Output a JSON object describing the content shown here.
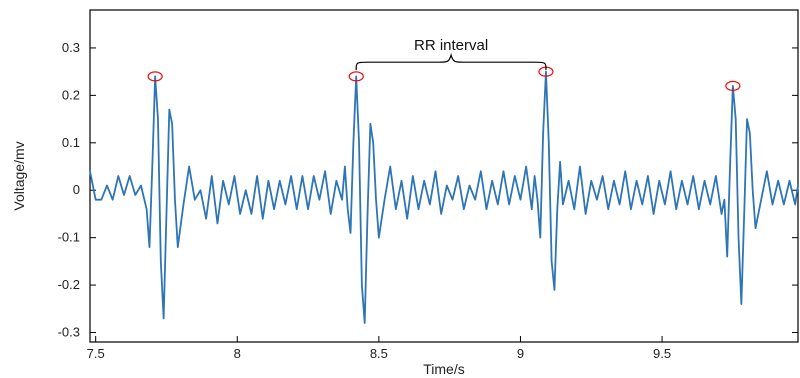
{
  "chart_data": {
    "type": "line",
    "xlabel": "Time/s",
    "ylabel": "Voltage/mv",
    "xlim": [
      7.48,
      9.98
    ],
    "ylim": [
      -0.32,
      0.38
    ],
    "xticks": [
      7.5,
      8,
      8.5,
      9,
      9.5
    ],
    "yticks": [
      0.3,
      0.2,
      0.1,
      0,
      -0.1,
      -0.2,
      -0.3
    ],
    "xtick_labels": [
      "7.5",
      "8",
      "8.5",
      "9",
      "9.5"
    ],
    "ytick_labels": [
      "0.3",
      "0.2",
      "0.1",
      "0",
      "-0.1",
      "-0.2",
      "-0.3"
    ],
    "annotation": {
      "label": "RR interval",
      "from_x": 8.42,
      "to_x": 9.09,
      "y": 0.27
    },
    "series": [
      {
        "color": "#2e75b6",
        "points": [
          [
            7.48,
            0.04
          ],
          [
            7.5,
            -0.02
          ],
          [
            7.52,
            -0.02
          ],
          [
            7.54,
            0.01
          ],
          [
            7.56,
            -0.02
          ],
          [
            7.58,
            0.03
          ],
          [
            7.6,
            -0.01
          ],
          [
            7.62,
            0.03
          ],
          [
            7.64,
            -0.01
          ],
          [
            7.66,
            0.01
          ],
          [
            7.68,
            -0.04
          ],
          [
            7.69,
            -0.12
          ],
          [
            7.7,
            0.05
          ],
          [
            7.71,
            0.24
          ],
          [
            7.72,
            0.15
          ],
          [
            7.73,
            -0.15
          ],
          [
            7.74,
            -0.27
          ],
          [
            7.75,
            -0.05
          ],
          [
            7.76,
            0.17
          ],
          [
            7.77,
            0.14
          ],
          [
            7.78,
            -0.02
          ],
          [
            7.79,
            -0.12
          ],
          [
            7.81,
            -0.03
          ],
          [
            7.83,
            0.05
          ],
          [
            7.85,
            -0.02
          ],
          [
            7.87,
            0.0
          ],
          [
            7.89,
            -0.06
          ],
          [
            7.91,
            0.03
          ],
          [
            7.93,
            -0.07
          ],
          [
            7.95,
            0.02
          ],
          [
            7.97,
            -0.03
          ],
          [
            7.99,
            0.03
          ],
          [
            8.01,
            -0.05
          ],
          [
            8.03,
            0.0
          ],
          [
            8.05,
            -0.05
          ],
          [
            8.07,
            0.03
          ],
          [
            8.09,
            -0.06
          ],
          [
            8.11,
            0.02
          ],
          [
            8.13,
            -0.04
          ],
          [
            8.15,
            0.02
          ],
          [
            8.17,
            -0.03
          ],
          [
            8.19,
            0.03
          ],
          [
            8.21,
            -0.04
          ],
          [
            8.23,
            0.03
          ],
          [
            8.25,
            -0.04
          ],
          [
            8.27,
            0.03
          ],
          [
            8.29,
            -0.02
          ],
          [
            8.31,
            0.04
          ],
          [
            8.33,
            -0.05
          ],
          [
            8.35,
            0.02
          ],
          [
            8.37,
            -0.02
          ],
          [
            8.38,
            0.05
          ],
          [
            8.39,
            -0.04
          ],
          [
            8.4,
            -0.09
          ],
          [
            8.41,
            0.1
          ],
          [
            8.42,
            0.24
          ],
          [
            8.43,
            0.1
          ],
          [
            8.44,
            -0.2
          ],
          [
            8.45,
            -0.28
          ],
          [
            8.46,
            -0.05
          ],
          [
            8.47,
            0.14
          ],
          [
            8.48,
            0.1
          ],
          [
            8.49,
            -0.02
          ],
          [
            8.5,
            -0.1
          ],
          [
            8.52,
            -0.02
          ],
          [
            8.54,
            0.05
          ],
          [
            8.56,
            -0.04
          ],
          [
            8.58,
            0.02
          ],
          [
            8.6,
            -0.06
          ],
          [
            8.62,
            0.03
          ],
          [
            8.64,
            -0.04
          ],
          [
            8.66,
            0.02
          ],
          [
            8.68,
            -0.03
          ],
          [
            8.7,
            0.04
          ],
          [
            8.72,
            -0.05
          ],
          [
            8.74,
            0.01
          ],
          [
            8.76,
            -0.02
          ],
          [
            8.78,
            0.03
          ],
          [
            8.8,
            -0.04
          ],
          [
            8.82,
            0.01
          ],
          [
            8.84,
            -0.02
          ],
          [
            8.86,
            0.04
          ],
          [
            8.88,
            -0.04
          ],
          [
            8.9,
            0.02
          ],
          [
            8.92,
            -0.03
          ],
          [
            8.94,
            0.04
          ],
          [
            8.96,
            -0.03
          ],
          [
            8.98,
            0.03
          ],
          [
            9.0,
            -0.02
          ],
          [
            9.02,
            0.05
          ],
          [
            9.04,
            -0.04
          ],
          [
            9.05,
            0.03
          ],
          [
            9.06,
            -0.02
          ],
          [
            9.07,
            -0.1
          ],
          [
            9.08,
            0.12
          ],
          [
            9.09,
            0.25
          ],
          [
            9.1,
            0.1
          ],
          [
            9.11,
            -0.15
          ],
          [
            9.12,
            -0.21
          ],
          [
            9.13,
            -0.04
          ],
          [
            9.14,
            0.06
          ],
          [
            9.15,
            -0.03
          ],
          [
            9.17,
            0.02
          ],
          [
            9.19,
            -0.04
          ],
          [
            9.21,
            0.05
          ],
          [
            9.23,
            -0.05
          ],
          [
            9.25,
            0.02
          ],
          [
            9.27,
            -0.02
          ],
          [
            9.29,
            0.03
          ],
          [
            9.31,
            -0.04
          ],
          [
            9.33,
            0.02
          ],
          [
            9.35,
            -0.03
          ],
          [
            9.37,
            0.04
          ],
          [
            9.39,
            -0.04
          ],
          [
            9.41,
            0.02
          ],
          [
            9.43,
            -0.03
          ],
          [
            9.45,
            0.03
          ],
          [
            9.47,
            -0.05
          ],
          [
            9.49,
            0.02
          ],
          [
            9.51,
            -0.03
          ],
          [
            9.53,
            0.04
          ],
          [
            9.55,
            -0.04
          ],
          [
            9.57,
            0.02
          ],
          [
            9.59,
            -0.03
          ],
          [
            9.61,
            0.03
          ],
          [
            9.63,
            -0.04
          ],
          [
            9.65,
            0.02
          ],
          [
            9.67,
            -0.03
          ],
          [
            9.69,
            0.03
          ],
          [
            9.71,
            -0.05
          ],
          [
            9.72,
            -0.02
          ],
          [
            9.73,
            -0.14
          ],
          [
            9.74,
            0.05
          ],
          [
            9.75,
            0.22
          ],
          [
            9.76,
            0.15
          ],
          [
            9.77,
            -0.1
          ],
          [
            9.78,
            -0.24
          ],
          [
            9.79,
            -0.05
          ],
          [
            9.8,
            0.15
          ],
          [
            9.81,
            0.12
          ],
          [
            9.82,
            0.0
          ],
          [
            9.83,
            -0.08
          ],
          [
            9.85,
            -0.02
          ],
          [
            9.87,
            0.04
          ],
          [
            9.89,
            -0.03
          ],
          [
            9.91,
            0.02
          ],
          [
            9.93,
            -0.03
          ],
          [
            9.95,
            0.02
          ],
          [
            9.97,
            -0.03
          ],
          [
            9.98,
            0.01
          ]
        ]
      }
    ],
    "markers": [
      {
        "x": 7.71,
        "y": 0.24,
        "color": "#ff0000"
      },
      {
        "x": 8.42,
        "y": 0.24,
        "color": "#ff0000"
      },
      {
        "x": 9.09,
        "y": 0.25,
        "color": "#ff0000"
      },
      {
        "x": 9.75,
        "y": 0.22,
        "color": "#ff0000"
      }
    ]
  }
}
